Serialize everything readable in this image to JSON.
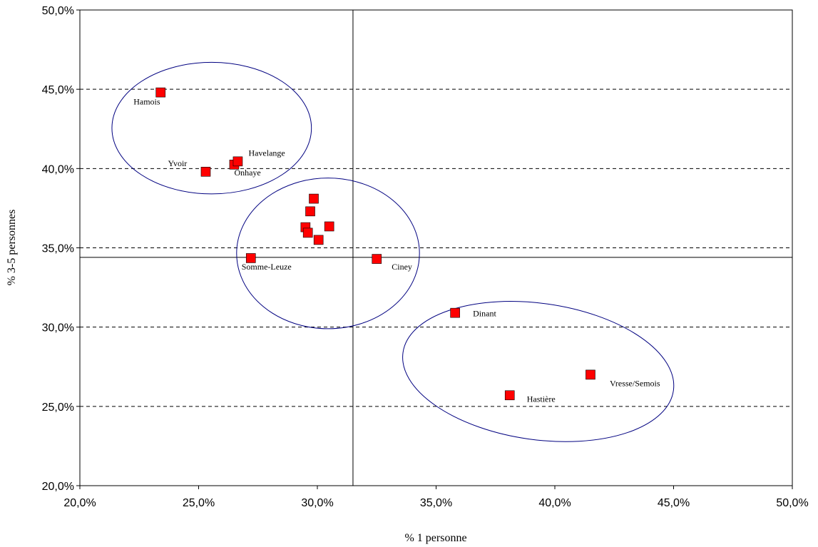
{
  "chart_data": {
    "type": "scatter",
    "title": "",
    "xlabel": "% 1 personne",
    "ylabel": "% 3-5 personnes",
    "xlim": [
      20,
      50
    ],
    "ylim": [
      20,
      50
    ],
    "x_ticks": [
      "20,0%",
      "25,0%",
      "30,0%",
      "35,0%",
      "40,0%",
      "45,0%",
      "50,0%"
    ],
    "y_ticks": [
      "20,0%",
      "25,0%",
      "30,0%",
      "35,0%",
      "40,0%",
      "45,0%",
      "50,0%"
    ],
    "gridlines": "horizontal dashed",
    "reference_lines": {
      "x": 31.5,
      "y": 34.4
    },
    "marker_color": "#ff0000",
    "ellipse_color": "#000080",
    "points": [
      {
        "x": 23.4,
        "y": 44.8,
        "label": "Hamois"
      },
      {
        "x": 25.3,
        "y": 39.8,
        "label": "Yvoir"
      },
      {
        "x": 26.5,
        "y": 40.25,
        "label": "Onhaye"
      },
      {
        "x": 26.65,
        "y": 40.45,
        "label": "Havelange"
      },
      {
        "x": 29.85,
        "y": 38.1,
        "label": ""
      },
      {
        "x": 29.7,
        "y": 37.3,
        "label": ""
      },
      {
        "x": 29.5,
        "y": 36.3,
        "label": ""
      },
      {
        "x": 29.6,
        "y": 35.95,
        "label": ""
      },
      {
        "x": 30.5,
        "y": 36.35,
        "label": ""
      },
      {
        "x": 30.05,
        "y": 35.5,
        "label": ""
      },
      {
        "x": 27.2,
        "y": 34.35,
        "label": "Somme-Leuze"
      },
      {
        "x": 32.5,
        "y": 34.3,
        "label": "Ciney"
      },
      {
        "x": 35.8,
        "y": 30.9,
        "label": "Dinant"
      },
      {
        "x": 38.1,
        "y": 25.7,
        "label": "Hastière"
      },
      {
        "x": 41.5,
        "y": 27.0,
        "label": "Vresse/Semois"
      }
    ],
    "ellipses": [
      {
        "cx": 25.55,
        "cy": 42.55,
        "rx": 4.2,
        "ry": 4.15,
        "rotation": 0
      },
      {
        "cx": 30.45,
        "cy": 34.65,
        "rx": 3.85,
        "ry": 4.75,
        "rotation": 0
      },
      {
        "cx": 39.3,
        "cy": 27.2,
        "rx": 5.75,
        "ry": 4.3,
        "rotation": 8
      }
    ]
  }
}
